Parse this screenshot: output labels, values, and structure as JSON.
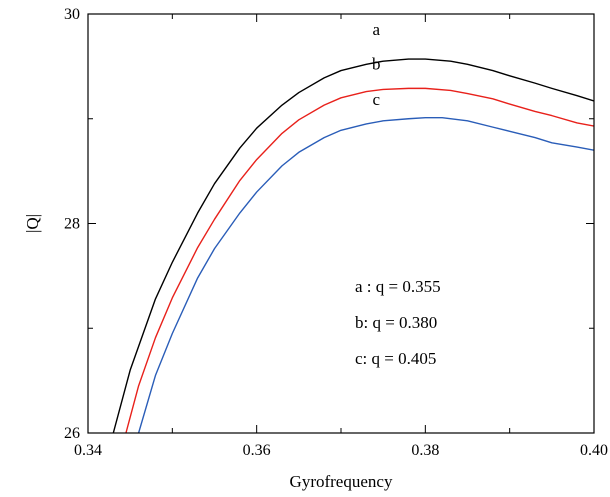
{
  "chart_data": {
    "type": "line",
    "title": "",
    "xlabel": "Gyrofrequency",
    "ylabel": "|Q|",
    "xlim": [
      0.34,
      0.4
    ],
    "ylim": [
      26,
      30
    ],
    "x_ticks": [
      0.34,
      0.36,
      0.38,
      0.4
    ],
    "x_tick_labels": [
      "0.34",
      "0.36",
      "0.38",
      "0.40"
    ],
    "y_ticks": [
      26,
      28,
      30
    ],
    "y_tick_labels": [
      "26",
      "28",
      "30"
    ],
    "grid": false,
    "series": [
      {
        "name": "a",
        "color": "#000000",
        "x": [
          0.343,
          0.345,
          0.348,
          0.35,
          0.353,
          0.355,
          0.358,
          0.36,
          0.363,
          0.365,
          0.368,
          0.37,
          0.373,
          0.375,
          0.378,
          0.379,
          0.38,
          0.383,
          0.385,
          0.388,
          0.39,
          0.393,
          0.395,
          0.398,
          0.4
        ],
        "y": [
          26.0,
          26.6,
          27.28,
          27.63,
          28.1,
          28.38,
          28.72,
          28.91,
          29.13,
          29.25,
          29.39,
          29.46,
          29.52,
          29.55,
          29.57,
          29.57,
          29.57,
          29.55,
          29.52,
          29.46,
          29.41,
          29.34,
          29.29,
          29.22,
          29.17
        ]
      },
      {
        "name": "b",
        "color": "#e8211b",
        "x": [
          0.3445,
          0.346,
          0.348,
          0.35,
          0.353,
          0.355,
          0.358,
          0.36,
          0.363,
          0.365,
          0.368,
          0.37,
          0.373,
          0.375,
          0.378,
          0.38,
          0.383,
          0.385,
          0.388,
          0.39,
          0.393,
          0.395,
          0.398,
          0.4
        ],
        "y": [
          26.0,
          26.45,
          26.91,
          27.29,
          27.77,
          28.04,
          28.41,
          28.61,
          28.86,
          28.99,
          29.13,
          29.2,
          29.26,
          29.28,
          29.29,
          29.29,
          29.27,
          29.24,
          29.19,
          29.14,
          29.07,
          29.03,
          28.96,
          28.93
        ]
      },
      {
        "name": "c",
        "color": "#2a5db8",
        "x": [
          0.346,
          0.348,
          0.35,
          0.353,
          0.355,
          0.358,
          0.36,
          0.363,
          0.365,
          0.368,
          0.37,
          0.373,
          0.375,
          0.378,
          0.38,
          0.382,
          0.385,
          0.388,
          0.39,
          0.393,
          0.395,
          0.398,
          0.4
        ],
        "y": [
          26.0,
          26.55,
          26.95,
          27.48,
          27.76,
          28.1,
          28.3,
          28.55,
          28.68,
          28.82,
          28.89,
          28.95,
          28.98,
          29.0,
          29.01,
          29.01,
          28.98,
          28.92,
          28.88,
          28.82,
          28.77,
          28.73,
          28.7
        ]
      }
    ],
    "curve_labels": [
      {
        "text": "a",
        "x": 0.373,
        "y": 29.8
      },
      {
        "text": "b",
        "x": 0.373,
        "y": 29.47
      },
      {
        "text": "c",
        "x": 0.373,
        "y": 29.13
      }
    ],
    "legend": {
      "placement": "center-right",
      "entries": [
        "a : q = 0.355",
        "b: q = 0.380",
        "c: q = 0.405"
      ]
    }
  }
}
